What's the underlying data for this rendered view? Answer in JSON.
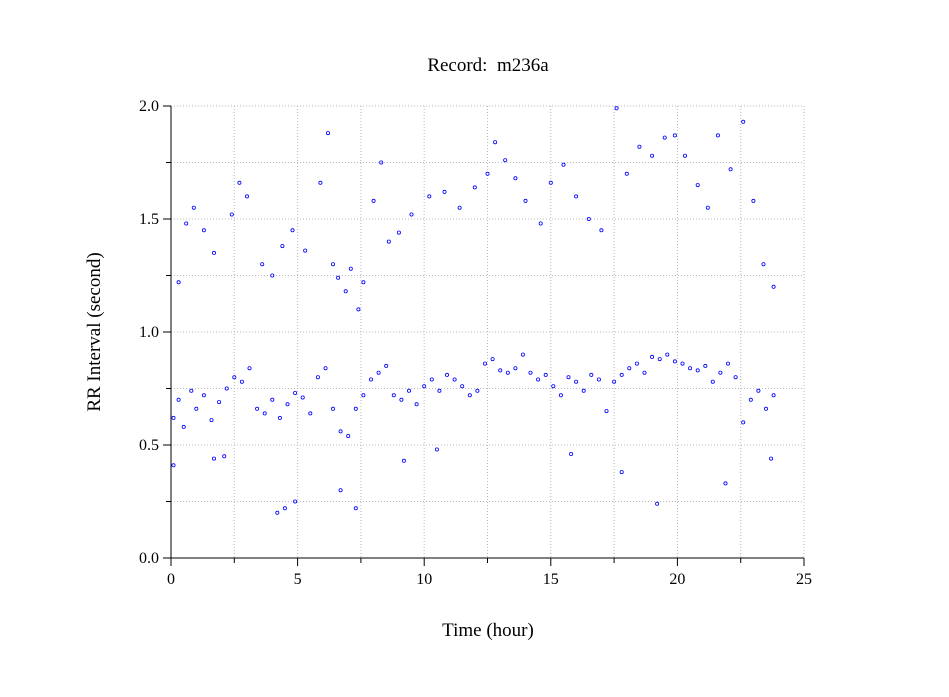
{
  "chart_data": {
    "type": "scatter",
    "title": "Record:  m236a",
    "xlabel": "Time (hour)",
    "ylabel": "RR Interval (second)",
    "xlim": [
      0,
      25
    ],
    "ylim": [
      0.0,
      2.0
    ],
    "x_ticks": [
      "0",
      "5",
      "10",
      "15",
      "20",
      "25"
    ],
    "y_ticks": [
      "0.0",
      "0.5",
      "1.0",
      "1.5",
      "2.0"
    ],
    "grid": true,
    "marker_color": "#0000ff",
    "series": [
      {
        "points": [
          [
            0.1,
            0.62
          ],
          [
            0.3,
            0.7
          ],
          [
            0.5,
            0.58
          ],
          [
            0.8,
            0.74
          ],
          [
            1.0,
            0.66
          ],
          [
            1.3,
            0.72
          ],
          [
            1.6,
            0.61
          ],
          [
            1.9,
            0.69
          ],
          [
            2.2,
            0.75
          ],
          [
            2.5,
            0.8
          ],
          [
            2.8,
            0.78
          ],
          [
            3.1,
            0.84
          ],
          [
            3.4,
            0.66
          ],
          [
            3.7,
            0.64
          ],
          [
            4.0,
            0.7
          ],
          [
            4.3,
            0.62
          ],
          [
            4.6,
            0.68
          ],
          [
            4.9,
            0.73
          ],
          [
            5.2,
            0.71
          ],
          [
            5.5,
            0.64
          ],
          [
            5.8,
            0.8
          ],
          [
            6.1,
            0.84
          ],
          [
            6.4,
            0.66
          ],
          [
            6.7,
            0.56
          ],
          [
            7.0,
            0.54
          ],
          [
            7.3,
            0.66
          ],
          [
            7.6,
            0.72
          ],
          [
            7.9,
            0.79
          ],
          [
            8.2,
            0.82
          ],
          [
            8.5,
            0.85
          ],
          [
            8.8,
            0.72
          ],
          [
            9.1,
            0.7
          ],
          [
            9.4,
            0.74
          ],
          [
            9.7,
            0.68
          ],
          [
            10.0,
            0.76
          ],
          [
            10.3,
            0.79
          ],
          [
            10.6,
            0.74
          ],
          [
            10.9,
            0.81
          ],
          [
            11.2,
            0.79
          ],
          [
            11.5,
            0.76
          ],
          [
            11.8,
            0.72
          ],
          [
            12.1,
            0.74
          ],
          [
            12.4,
            0.86
          ],
          [
            12.7,
            0.88
          ],
          [
            13.0,
            0.83
          ],
          [
            13.3,
            0.82
          ],
          [
            13.6,
            0.84
          ],
          [
            13.9,
            0.9
          ],
          [
            14.2,
            0.82
          ],
          [
            14.5,
            0.79
          ],
          [
            14.8,
            0.81
          ],
          [
            15.1,
            0.76
          ],
          [
            15.4,
            0.72
          ],
          [
            15.7,
            0.8
          ],
          [
            16.0,
            0.78
          ],
          [
            16.3,
            0.74
          ],
          [
            16.6,
            0.81
          ],
          [
            16.9,
            0.79
          ],
          [
            17.2,
            0.65
          ],
          [
            17.5,
            0.78
          ],
          [
            17.8,
            0.81
          ],
          [
            18.1,
            0.84
          ],
          [
            18.4,
            0.86
          ],
          [
            18.7,
            0.82
          ],
          [
            19.0,
            0.89
          ],
          [
            19.3,
            0.88
          ],
          [
            19.6,
            0.9
          ],
          [
            19.9,
            0.87
          ],
          [
            20.2,
            0.86
          ],
          [
            20.5,
            0.84
          ],
          [
            20.8,
            0.83
          ],
          [
            21.1,
            0.85
          ],
          [
            21.4,
            0.78
          ],
          [
            21.7,
            0.82
          ],
          [
            22.0,
            0.86
          ],
          [
            22.3,
            0.8
          ],
          [
            22.6,
            0.6
          ],
          [
            22.9,
            0.7
          ],
          [
            23.2,
            0.74
          ],
          [
            23.5,
            0.66
          ],
          [
            23.8,
            0.72
          ],
          [
            0.3,
            1.22
          ],
          [
            0.6,
            1.48
          ],
          [
            0.9,
            1.55
          ],
          [
            1.3,
            1.45
          ],
          [
            1.7,
            1.35
          ],
          [
            2.4,
            1.52
          ],
          [
            2.7,
            1.66
          ],
          [
            3.0,
            1.6
          ],
          [
            3.6,
            1.3
          ],
          [
            4.0,
            1.25
          ],
          [
            4.4,
            1.38
          ],
          [
            4.8,
            1.45
          ],
          [
            5.3,
            1.36
          ],
          [
            5.9,
            1.66
          ],
          [
            6.2,
            1.88
          ],
          [
            6.4,
            1.3
          ],
          [
            6.6,
            1.24
          ],
          [
            6.9,
            1.18
          ],
          [
            7.1,
            1.28
          ],
          [
            7.4,
            1.1
          ],
          [
            7.6,
            1.22
          ],
          [
            8.0,
            1.58
          ],
          [
            8.3,
            1.75
          ],
          [
            8.6,
            1.4
          ],
          [
            9.0,
            1.44
          ],
          [
            9.5,
            1.52
          ],
          [
            10.2,
            1.6
          ],
          [
            10.8,
            1.62
          ],
          [
            11.4,
            1.55
          ],
          [
            12.0,
            1.64
          ],
          [
            12.5,
            1.7
          ],
          [
            12.8,
            1.84
          ],
          [
            13.2,
            1.76
          ],
          [
            13.6,
            1.68
          ],
          [
            14.0,
            1.58
          ],
          [
            14.6,
            1.48
          ],
          [
            15.0,
            1.66
          ],
          [
            15.5,
            1.74
          ],
          [
            16.0,
            1.6
          ],
          [
            16.5,
            1.5
          ],
          [
            17.0,
            1.45
          ],
          [
            17.6,
            1.99
          ],
          [
            18.0,
            1.7
          ],
          [
            18.5,
            1.82
          ],
          [
            19.0,
            1.78
          ],
          [
            19.5,
            1.86
          ],
          [
            19.9,
            1.87
          ],
          [
            20.3,
            1.78
          ],
          [
            20.8,
            1.65
          ],
          [
            21.2,
            1.55
          ],
          [
            21.6,
            1.87
          ],
          [
            22.1,
            1.72
          ],
          [
            22.6,
            1.93
          ],
          [
            23.0,
            1.58
          ],
          [
            23.4,
            1.3
          ],
          [
            23.8,
            1.2
          ],
          [
            4.2,
            0.2
          ],
          [
            4.5,
            0.22
          ],
          [
            4.9,
            0.25
          ],
          [
            2.1,
            0.45
          ],
          [
            6.7,
            0.3
          ],
          [
            7.3,
            0.22
          ],
          [
            9.2,
            0.43
          ],
          [
            17.8,
            0.38
          ],
          [
            19.2,
            0.24
          ],
          [
            21.9,
            0.33
          ],
          [
            23.7,
            0.44
          ],
          [
            0.1,
            0.41
          ],
          [
            1.7,
            0.44
          ],
          [
            10.5,
            0.48
          ],
          [
            15.8,
            0.46
          ]
        ]
      }
    ]
  }
}
